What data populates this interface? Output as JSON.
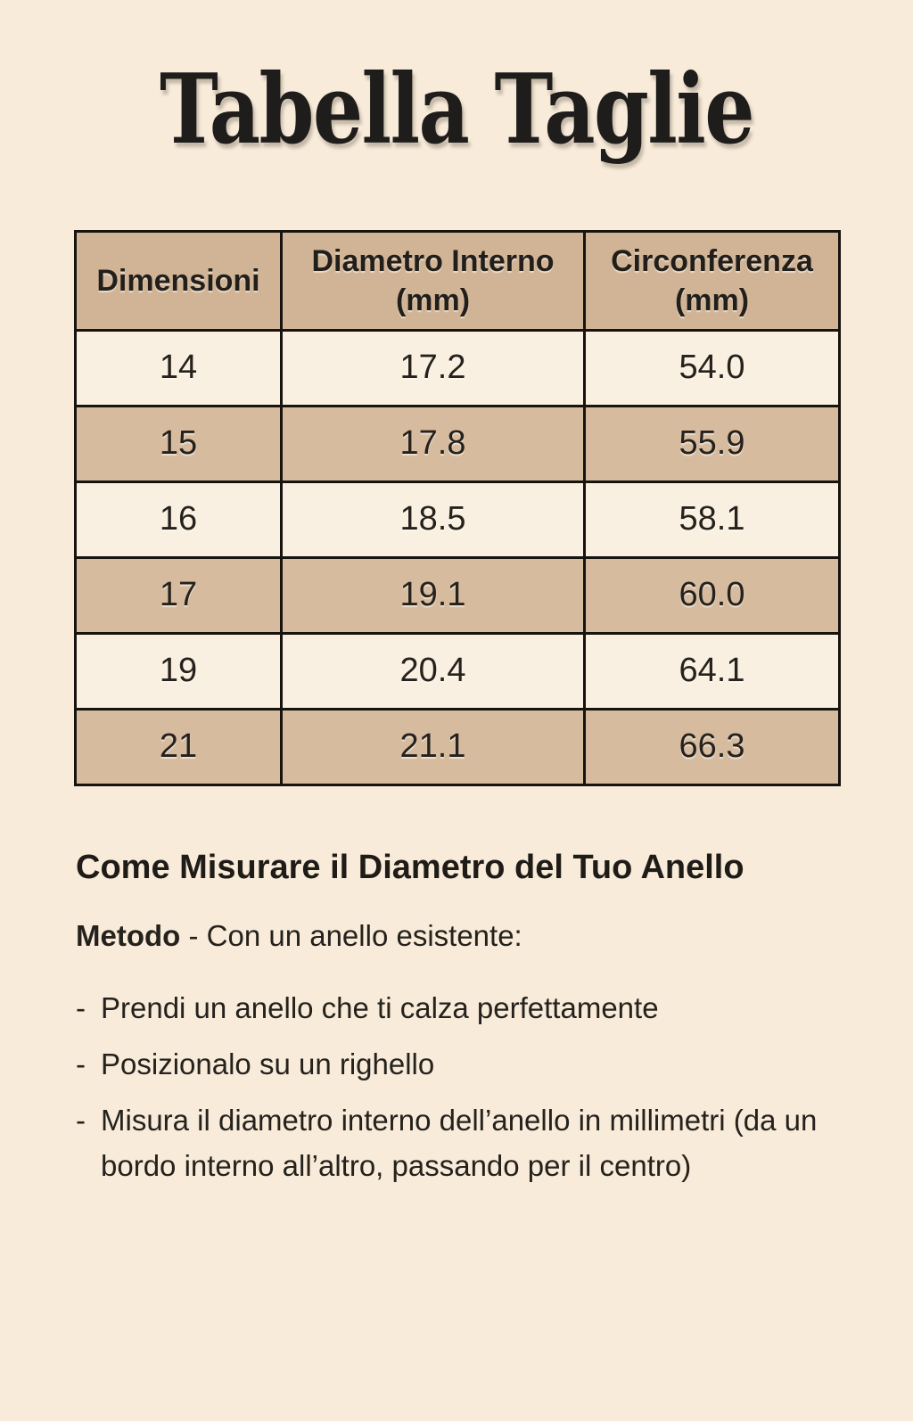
{
  "title": "Tabella Taglie",
  "colors": {
    "page_background": "#f8ebd9",
    "table_header_bg": "#d1b496",
    "table_row_bg": "#faf0e1",
    "table_row_alt_bg": "#d6bb9f",
    "table_border": "#17130e",
    "text": "#1c1a17"
  },
  "table": {
    "headers": [
      {
        "line1": "Dimensioni",
        "line2": ""
      },
      {
        "line1": "Diametro Interno",
        "line2": "(mm)"
      },
      {
        "line1": "Circonferenza",
        "line2": "(mm)"
      }
    ],
    "rows": [
      [
        "14",
        "17.2",
        "54.0"
      ],
      [
        "15",
        "17.8",
        "55.9"
      ],
      [
        "16",
        "18.5",
        "58.1"
      ],
      [
        "17",
        "19.1",
        "60.0"
      ],
      [
        "19",
        "20.4",
        "64.1"
      ],
      [
        "21",
        "21.1",
        "66.3"
      ]
    ]
  },
  "section": {
    "heading": "Come Misurare il Diametro del Tuo Anello",
    "method_label": "Metodo",
    "method_text": " - Con un anello esistente:",
    "bullet_marker": "-",
    "bullets": [
      "Prendi un anello che ti calza perfettamente",
      "Posizionalo su un righello",
      "Misura il diametro interno dell’anello in millimetri (da un bordo interno all’altro, passando per il centro)"
    ]
  }
}
